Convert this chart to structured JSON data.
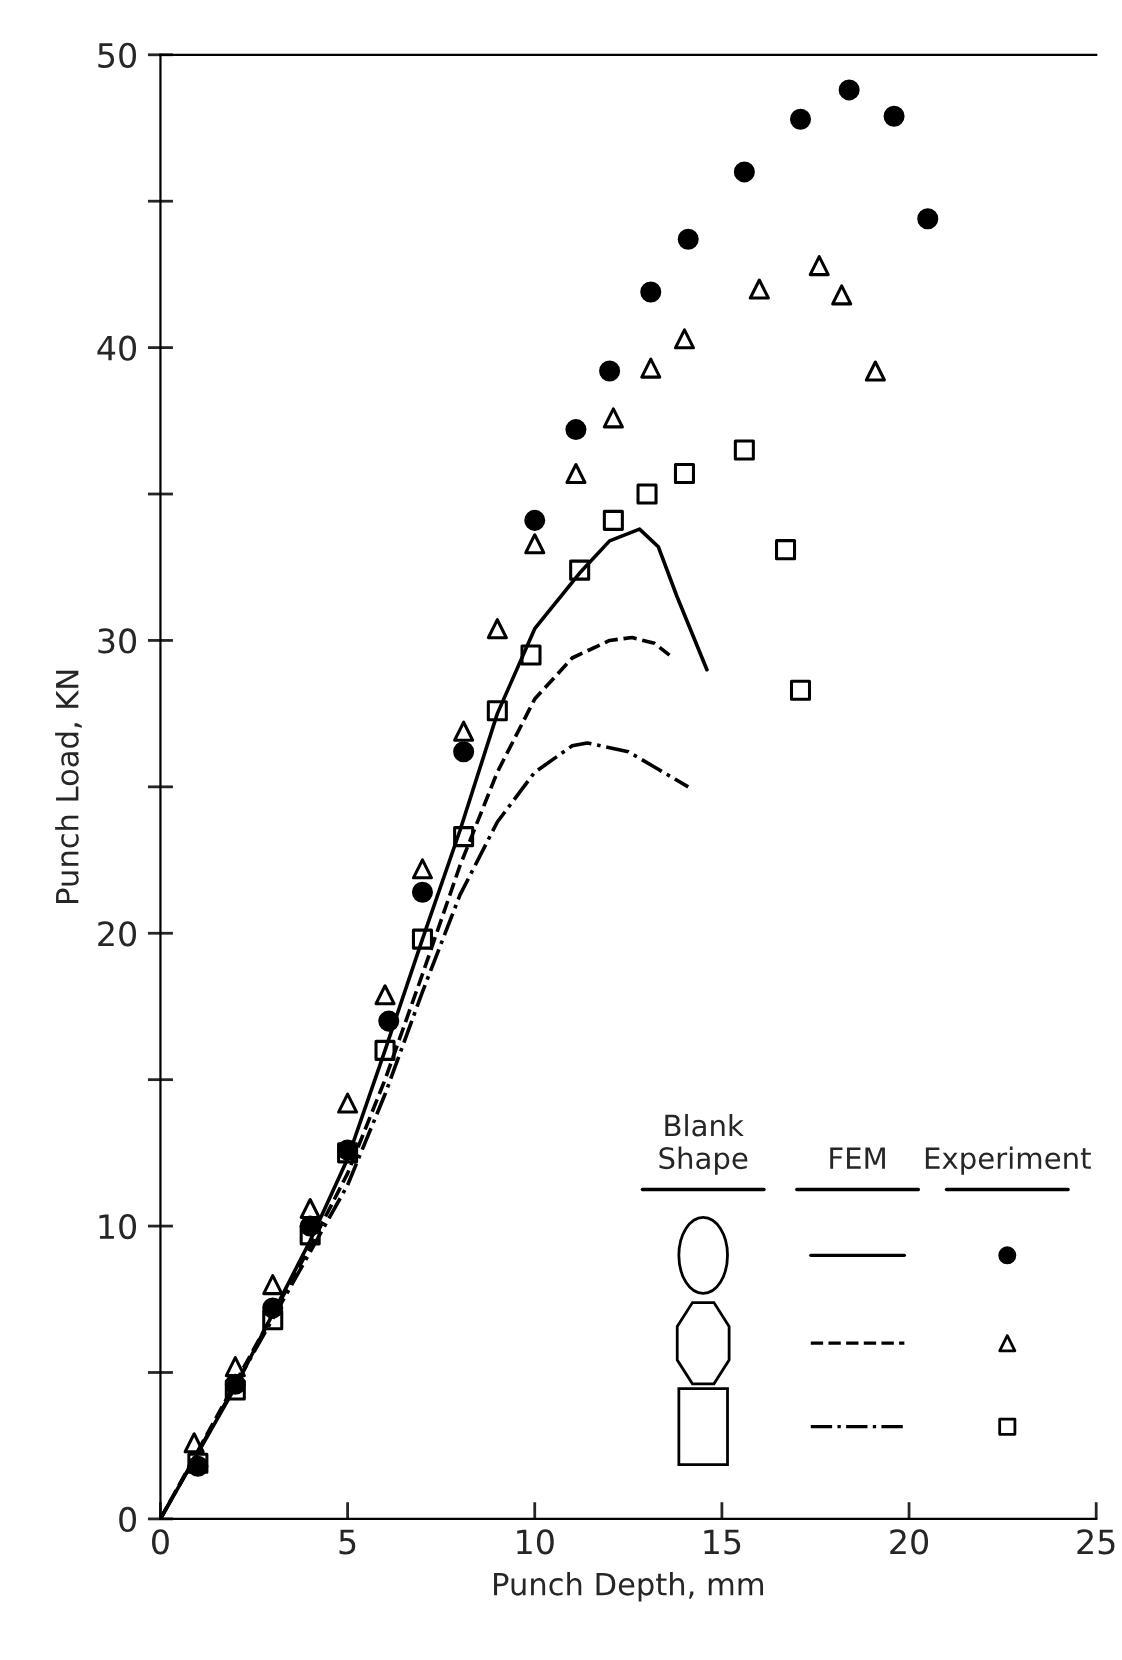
{
  "chart_data": {
    "type": "line",
    "xlabel": "Punch Depth, mm",
    "ylabel": "Punch Load, KN",
    "xlim": [
      0,
      25
    ],
    "ylim": [
      0,
      50
    ],
    "xticks": [
      0,
      5,
      10,
      15,
      20,
      25
    ],
    "yticks": [
      0,
      {
        "value": 5,
        "label": null
      },
      10,
      {
        "value": 15,
        "label": null
      },
      20,
      {
        "value": 25,
        "label": null
      },
      30,
      {
        "value": 35,
        "label": null
      },
      40,
      {
        "value": 45,
        "label": null
      },
      50
    ],
    "grid": false,
    "legend": false,
    "annotations": [
      "Blank\nShape",
      "FEM",
      "Experiment"
    ],
    "series": [
      {
        "color": "#000000",
        "line_style": "solid",
        "marker": "none",
        "x": [
          0,
          2,
          4,
          5,
          6,
          7,
          8,
          9,
          10,
          11.2,
          12,
          12.8,
          13.3,
          13.8,
          14.6
        ],
        "values": [
          0,
          4.5,
          9.5,
          12.3,
          16,
          19.8,
          23.5,
          27.5,
          30.4,
          32.3,
          33.4,
          33.8,
          33.2,
          31.5,
          29.0
        ]
      },
      {
        "color": "#000000",
        "line_style": "dashed",
        "marker": "none",
        "x": [
          0,
          4,
          5,
          6,
          7,
          8,
          9,
          10,
          11,
          12,
          12.6,
          13.2,
          13.6
        ],
        "values": [
          0,
          9.3,
          11.8,
          15,
          18.6,
          22.3,
          25.5,
          28,
          29.4,
          30.0,
          30.1,
          29.9,
          29.5
        ]
      },
      {
        "color": "#000000",
        "line_style": "dashdot",
        "marker": "none",
        "x": [
          0,
          5,
          6,
          7,
          8,
          9,
          10,
          11,
          11.4,
          12.5,
          13.3,
          14.1
        ],
        "values": [
          0,
          11.4,
          14.5,
          18,
          21.3,
          23.8,
          25.5,
          26.4,
          26.5,
          26.2,
          25.6,
          25.0
        ]
      },
      {
        "type": "scatter",
        "color": "#000000",
        "marker": "circle",
        "x": [
          1,
          2,
          3,
          4,
          5,
          6.1,
          7,
          8.1,
          10,
          11.1,
          12,
          13.1,
          14.1,
          15.6,
          17.1,
          18.4,
          19.6,
          20.5
        ],
        "values": [
          1.8,
          4.6,
          7.2,
          10.0,
          12.6,
          17.0,
          21.4,
          26.2,
          34.1,
          37.2,
          39.2,
          41.9,
          43.7,
          46.0,
          47.8,
          48.8,
          47.9,
          44.4
        ]
      },
      {
        "type": "scatter",
        "color": "#000000",
        "marker": "triangle",
        "x": [
          0.9,
          2,
          3,
          4,
          5,
          6,
          7,
          8.1,
          9,
          10,
          11.1,
          12.1,
          13.1,
          14,
          16,
          17.6,
          18.2,
          19.1
        ],
        "values": [
          2.6,
          5.2,
          8.0,
          10.6,
          14.2,
          17.9,
          22.2,
          26.9,
          30.4,
          33.3,
          35.7,
          37.6,
          39.3,
          40.3,
          42.0,
          42.8,
          41.8,
          39.2
        ]
      },
      {
        "type": "scatter",
        "color": "#000000",
        "marker": "square",
        "x": [
          1,
          2,
          3,
          4,
          5,
          6,
          7,
          8.1,
          9,
          9.9,
          11.2,
          12.1,
          13,
          14,
          15.6,
          16.7,
          17.1
        ],
        "values": [
          1.9,
          4.4,
          6.8,
          9.7,
          12.5,
          16.0,
          19.8,
          23.3,
          27.6,
          29.5,
          32.4,
          34.1,
          35.0,
          35.7,
          36.5,
          33.1,
          28.3
        ]
      }
    ]
  }
}
